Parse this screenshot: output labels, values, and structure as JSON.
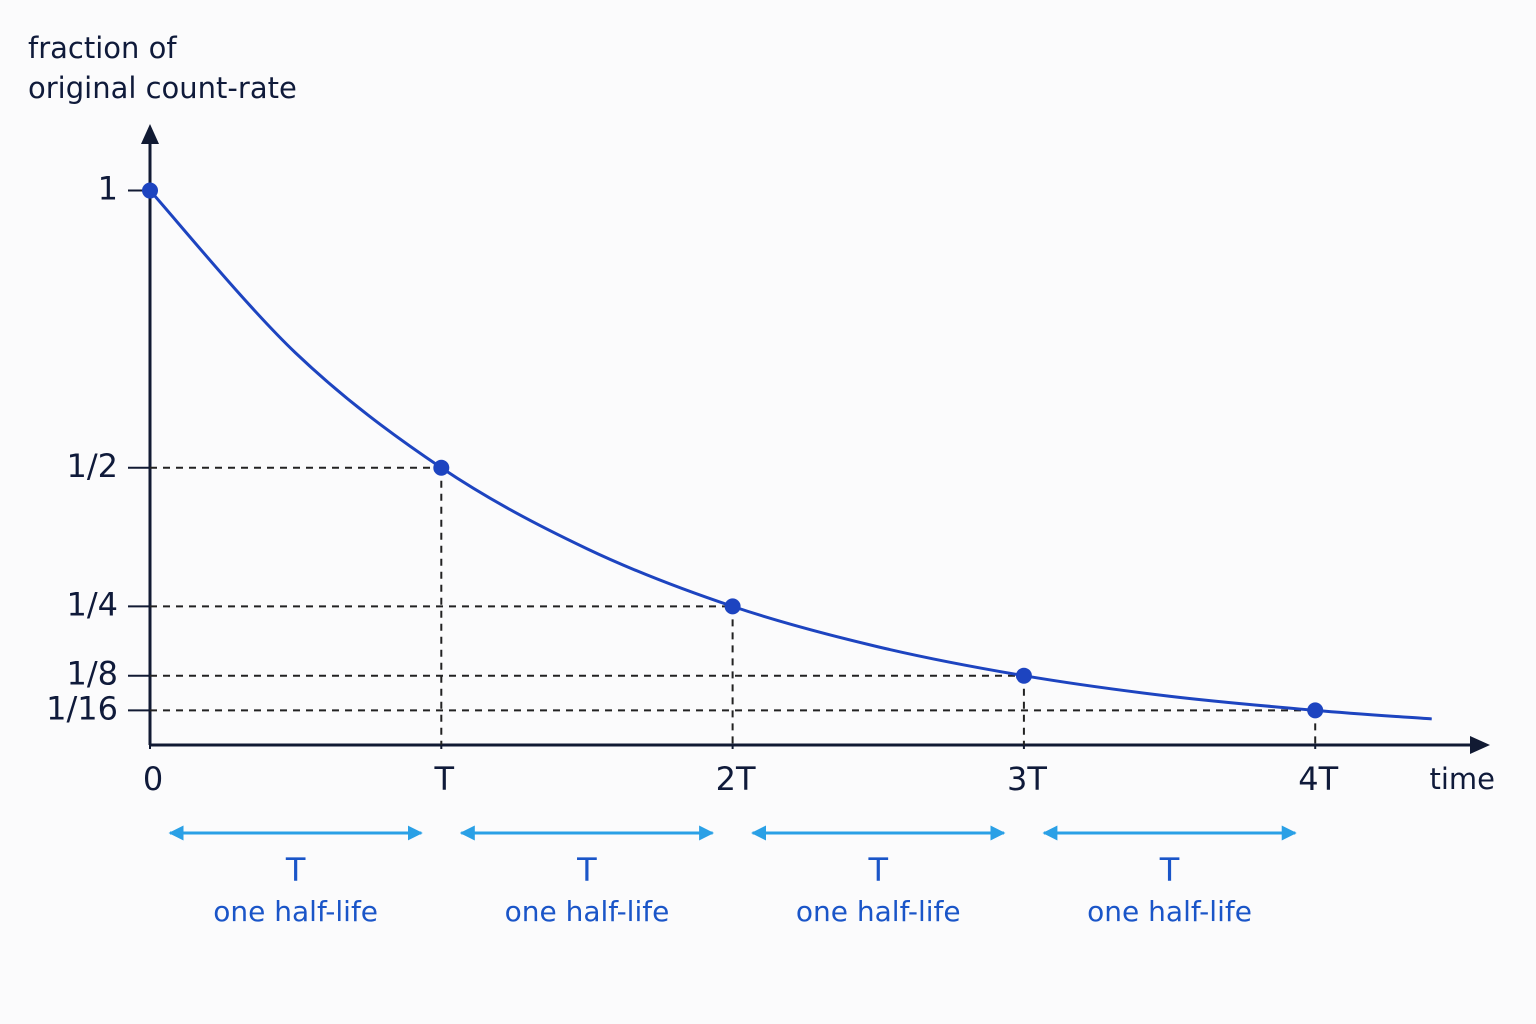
{
  "chart_data": {
    "type": "line",
    "ylabel": [
      "fraction of",
      "original count-rate"
    ],
    "xlabel": "time",
    "xlim": [
      0,
      4.6
    ],
    "ylim": [
      0,
      1.12
    ],
    "xticks": [
      0,
      {
        "value": 1,
        "label": "T"
      },
      {
        "value": 2,
        "label": "2T"
      },
      {
        "value": 3,
        "label": "3T"
      },
      {
        "value": 4,
        "label": "4T"
      }
    ],
    "yticks": [
      1,
      {
        "value": 0.5,
        "label": "1/2"
      },
      {
        "value": 0.25,
        "label": "1/4"
      },
      {
        "value": 0.125,
        "label": "1/8"
      },
      {
        "value": 0.0625,
        "label": "1/16"
      }
    ],
    "series": [
      {
        "color": "#1d44c0",
        "x": [
          0,
          0.5,
          1,
          1.5,
          2,
          2.5,
          3,
          3.5,
          4,
          4.4
        ],
        "values": [
          1,
          0.707,
          0.5,
          0.354,
          0.25,
          0.177,
          0.125,
          0.088,
          0.0625,
          0.047
        ]
      }
    ],
    "points": {
      "color": "#1d44c0",
      "x": [
        0,
        1,
        2,
        3,
        4
      ],
      "values": [
        1,
        0.5,
        0.25,
        0.125,
        0.0625
      ]
    },
    "interval_color": "#2aa0e6",
    "intervals": [
      {
        "label": "T",
        "sublabel": "one half-life"
      },
      {
        "label": "T",
        "sublabel": "one half-life"
      },
      {
        "label": "T",
        "sublabel": "one half-life"
      },
      {
        "label": "T",
        "sublabel": "one half-life"
      }
    ]
  }
}
